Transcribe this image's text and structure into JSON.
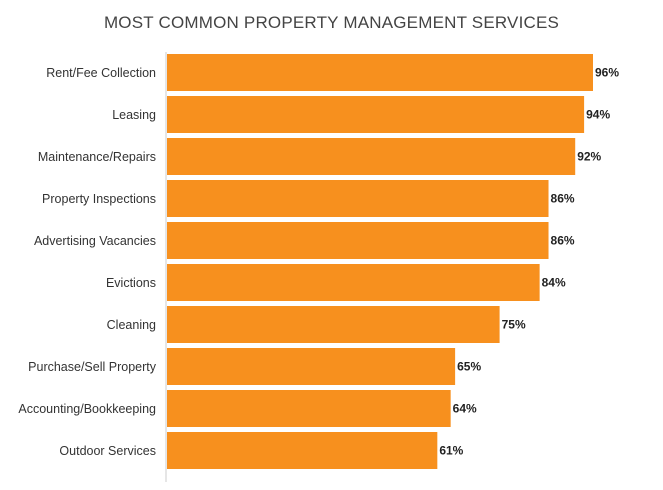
{
  "chart_data": {
    "type": "bar",
    "orientation": "horizontal",
    "title": "MOST COMMON PROPERTY MANAGEMENT SERVICES",
    "xlabel": "",
    "ylabel": "",
    "categories": [
      "Rent/Fee Collection",
      "Leasing",
      "Maintenance/Repairs",
      "Property Inspections",
      "Advertising Vacancies",
      "Evictions",
      "Cleaning",
      "Purchase/Sell Property",
      "Accounting/Bookkeeping",
      "Outdoor Services"
    ],
    "values": [
      96,
      94,
      92,
      86,
      86,
      84,
      75,
      65,
      64,
      61
    ],
    "value_suffix": "%",
    "xlim": [
      0,
      100
    ],
    "grid": false,
    "legend": "none",
    "colors": {
      "bar": "#F7901E",
      "axis": "#CCCCCC",
      "label": "#333333",
      "value": "#222222",
      "title": "#444444"
    }
  }
}
